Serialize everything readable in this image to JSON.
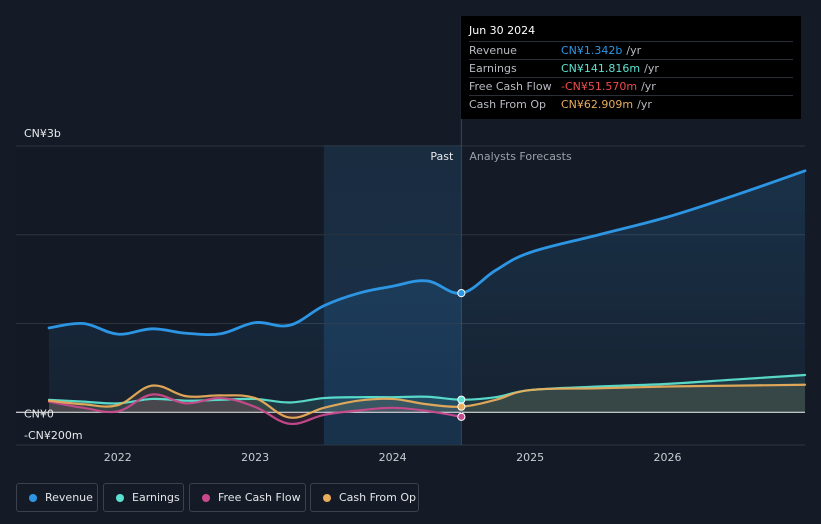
{
  "chart_data": {
    "type": "line",
    "y_tick_labels": [
      {
        "label": "CN¥3b",
        "value": 3000
      },
      {
        "label": "CN¥0",
        "value": 0
      },
      {
        "label": "-CN¥200m",
        "value": -200
      }
    ],
    "x_tick_labels": [
      "2022",
      "2023",
      "2024",
      "2025",
      "2026"
    ],
    "x_tick_values": [
      2022.0,
      2023.0,
      2024.0,
      2025.0,
      2026.0
    ],
    "xlim": [
      2021.5,
      2027.0
    ],
    "ylim": [
      -200,
      3000
    ],
    "past_label": "Past",
    "forecast_label": "Analysts Forecasts",
    "divider_x": 2024.5,
    "highlight_start_x": 2023.5,
    "series": [
      {
        "name": "Revenue",
        "color": "#2d96e4",
        "x": [
          2021.5,
          2021.75,
          2022.0,
          2022.25,
          2022.5,
          2022.75,
          2023.0,
          2023.25,
          2023.5,
          2023.75,
          2024.0,
          2024.25,
          2024.5,
          2024.75,
          2025.0,
          2025.5,
          2026.0,
          2026.5,
          2027.0
        ],
        "y": [
          950,
          1000,
          880,
          940,
          890,
          885,
          1010,
          980,
          1200,
          1340,
          1420,
          1480,
          1342,
          1600,
          1800,
          2000,
          2200,
          2450,
          2720
        ]
      },
      {
        "name": "Earnings",
        "color": "#5ce1d0",
        "x": [
          2021.5,
          2021.75,
          2022.0,
          2022.25,
          2022.5,
          2022.75,
          2023.0,
          2023.25,
          2023.5,
          2023.75,
          2024.0,
          2024.25,
          2024.5,
          2024.75,
          2025.0,
          2025.5,
          2026.0,
          2026.5,
          2027.0
        ],
        "y": [
          140,
          120,
          100,
          150,
          130,
          140,
          150,
          110,
          160,
          170,
          170,
          175,
          141.816,
          170,
          250,
          290,
          320,
          370,
          420
        ]
      },
      {
        "name": "Free Cash Flow",
        "color": "#c94a8c",
        "x": [
          2021.5,
          2021.75,
          2022.0,
          2022.25,
          2022.5,
          2022.75,
          2023.0,
          2023.25,
          2023.5,
          2023.75,
          2024.0,
          2024.25,
          2024.5
        ],
        "y": [
          120,
          50,
          10,
          200,
          100,
          160,
          60,
          -130,
          -30,
          20,
          50,
          15,
          -51.57
        ]
      },
      {
        "name": "Cash From Op",
        "color": "#e8ac5a",
        "x": [
          2021.5,
          2021.75,
          2022.0,
          2022.25,
          2022.5,
          2022.75,
          2023.0,
          2023.25,
          2023.5,
          2023.75,
          2024.0,
          2024.25,
          2024.5,
          2024.75,
          2025.0,
          2025.5,
          2026.0,
          2026.5,
          2027.0
        ],
        "y": [
          130,
          90,
          80,
          300,
          180,
          190,
          160,
          -60,
          50,
          130,
          150,
          90,
          62.909,
          140,
          250,
          270,
          290,
          300,
          310
        ]
      }
    ]
  },
  "tooltip": {
    "date": "Jun 30 2024",
    "rows": [
      {
        "label": "Revenue",
        "value": "CN¥1.342b",
        "unit": "/yr",
        "color": "#2d96e4"
      },
      {
        "label": "Earnings",
        "value": "CN¥141.816m",
        "unit": "/yr",
        "color": "#5ce1d0"
      },
      {
        "label": "Free Cash Flow",
        "value": "-CN¥51.570m",
        "unit": "/yr",
        "color": "#ee4c4c"
      },
      {
        "label": "Cash From Op",
        "value": "CN¥62.909m",
        "unit": "/yr",
        "color": "#e8ac5a"
      }
    ]
  },
  "legend": [
    {
      "label": "Revenue",
      "color": "#2d96e4"
    },
    {
      "label": "Earnings",
      "color": "#5ce1d0"
    },
    {
      "label": "Free Cash Flow",
      "color": "#c94a8c"
    },
    {
      "label": "Cash From Op",
      "color": "#e8ac5a"
    }
  ]
}
